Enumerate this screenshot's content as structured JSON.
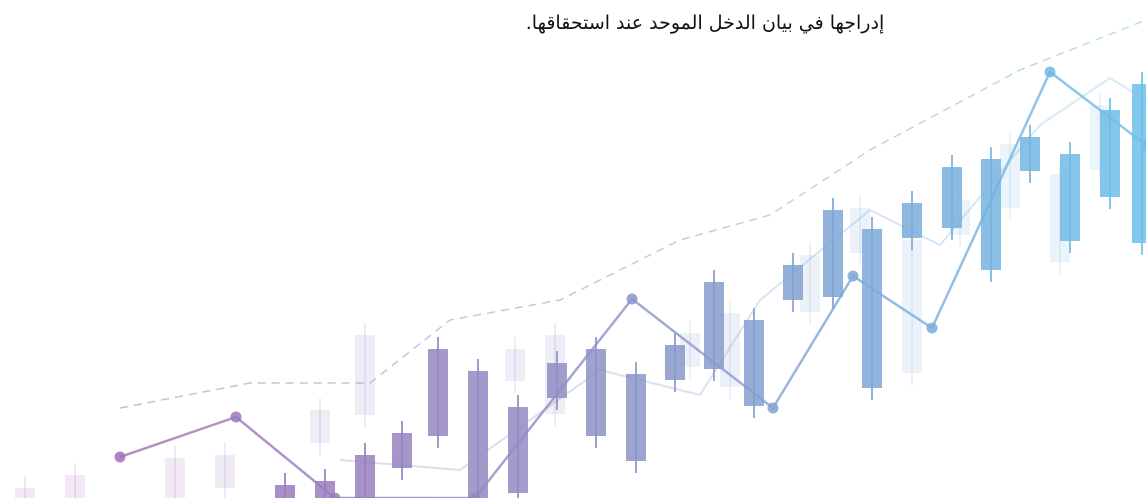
{
  "text": {
    "line": "إدراجها في بيان الدخل الموحد عند استحقاقها."
  }
}
